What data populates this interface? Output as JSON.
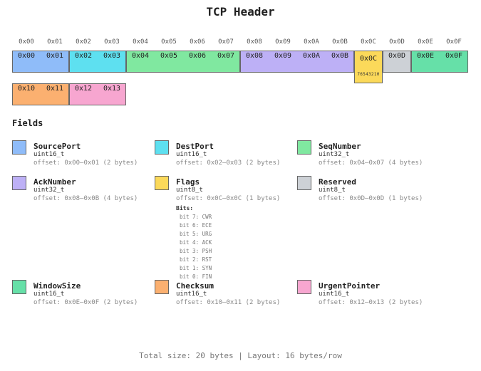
{
  "title": "TCP Header",
  "column_headers": [
    "0x00",
    "0x01",
    "0x02",
    "0x03",
    "0x04",
    "0x05",
    "0x06",
    "0x07",
    "0x08",
    "0x09",
    "0x0A",
    "0x0B",
    "0x0C",
    "0x0D",
    "0x0E",
    "0x0F"
  ],
  "segments": [
    {
      "field": "SourcePort",
      "row": 0,
      "start_col": 0,
      "len": 2,
      "color": "#8fbcf9",
      "cells": [
        "0x00",
        "0x01"
      ]
    },
    {
      "field": "DestPort",
      "row": 0,
      "start_col": 2,
      "len": 2,
      "color": "#5ee0f0",
      "cells": [
        "0x02",
        "0x03"
      ]
    },
    {
      "field": "SeqNumber",
      "row": 0,
      "start_col": 4,
      "len": 4,
      "color": "#80e8a0",
      "cells": [
        "0x04",
        "0x05",
        "0x06",
        "0x07"
      ]
    },
    {
      "field": "AckNumber",
      "row": 0,
      "start_col": 8,
      "len": 4,
      "color": "#bdb0f6",
      "cells": [
        "0x08",
        "0x09",
        "0x0A",
        "0x0B"
      ]
    },
    {
      "field": "Flags",
      "row": 0,
      "start_col": 12,
      "len": 1,
      "color": "#fbd95a",
      "cells": [
        "0x0C"
      ],
      "bits_text": "76543210"
    },
    {
      "field": "Reserved",
      "row": 0,
      "start_col": 13,
      "len": 1,
      "color": "#cdd1d6",
      "cells": [
        "0x0D"
      ]
    },
    {
      "field": "WindowSize",
      "row": 0,
      "start_col": 14,
      "len": 2,
      "color": "#66e0a8",
      "cells": [
        "0x0E",
        "0x0F"
      ]
    },
    {
      "field": "Checksum",
      "row": 1,
      "start_col": 0,
      "len": 2,
      "color": "#fbb070",
      "cells": [
        "0x10",
        "0x11"
      ]
    },
    {
      "field": "UrgentPointer",
      "row": 1,
      "start_col": 2,
      "len": 2,
      "color": "#f7a6d0",
      "cells": [
        "0x12",
        "0x13"
      ]
    }
  ],
  "fields_heading": "Fields",
  "fields": [
    {
      "name": "SourcePort",
      "type": "uint16_t",
      "offset": "offset: 0x00–0x01 (2 bytes)",
      "color": "#8fbcf9"
    },
    {
      "name": "DestPort",
      "type": "uint16_t",
      "offset": "offset: 0x02–0x03 (2 bytes)",
      "color": "#5ee0f0"
    },
    {
      "name": "SeqNumber",
      "type": "uint32_t",
      "offset": "offset: 0x04–0x07 (4 bytes)",
      "color": "#80e8a0"
    },
    {
      "name": "AckNumber",
      "type": "uint32_t",
      "offset": "offset: 0x08–0x0B (4 bytes)",
      "color": "#bdb0f6"
    },
    {
      "name": "Flags",
      "type": "uint8_t",
      "offset": "offset: 0x0C–0x0C (1 bytes)",
      "color": "#fbd95a",
      "bits_label": "Bits:",
      "bits": [
        "bit 7: CWR",
        "bit 6: ECE",
        "bit 5: URG",
        "bit 4: ACK",
        "bit 3: PSH",
        "bit 2: RST",
        "bit 1: SYN",
        "bit 0: FIN"
      ]
    },
    {
      "name": "Reserved",
      "type": "uint8_t",
      "offset": "offset: 0x0D–0x0D (1 bytes)",
      "color": "#cdd1d6"
    },
    {
      "name": "WindowSize",
      "type": "uint16_t",
      "offset": "offset: 0x0E–0x0F (2 bytes)",
      "color": "#66e0a8"
    },
    {
      "name": "Checksum",
      "type": "uint16_t",
      "offset": "offset: 0x10–0x11 (2 bytes)",
      "color": "#fbb070"
    },
    {
      "name": "UrgentPointer",
      "type": "uint16_t",
      "offset": "offset: 0x12–0x13 (2 bytes)",
      "color": "#f7a6d0"
    }
  ],
  "footer": "Total size: 20 bytes | Layout: 16 bytes/row"
}
